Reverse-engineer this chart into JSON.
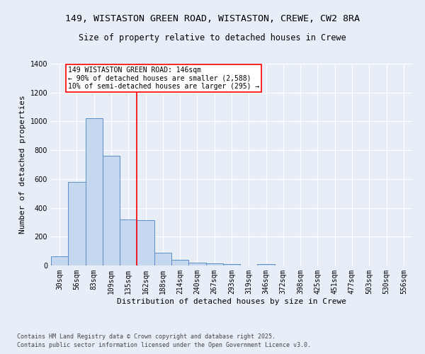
{
  "title_line1": "149, WISTASTON GREEN ROAD, WISTASTON, CREWE, CW2 8RA",
  "title_line2": "Size of property relative to detached houses in Crewe",
  "xlabel": "Distribution of detached houses by size in Crewe",
  "ylabel": "Number of detached properties",
  "categories": [
    "30sqm",
    "56sqm",
    "83sqm",
    "109sqm",
    "135sqm",
    "162sqm",
    "188sqm",
    "214sqm",
    "240sqm",
    "267sqm",
    "293sqm",
    "319sqm",
    "346sqm",
    "372sqm",
    "398sqm",
    "425sqm",
    "451sqm",
    "477sqm",
    "503sqm",
    "530sqm",
    "556sqm"
  ],
  "values": [
    65,
    580,
    1020,
    760,
    320,
    315,
    90,
    40,
    22,
    13,
    10,
    0,
    12,
    0,
    0,
    0,
    0,
    0,
    0,
    0,
    0
  ],
  "bar_color": "#c5d8f0",
  "bar_edge_color": "#5b8fc9",
  "red_line_x": 4.5,
  "annotation_text": "149 WISTASTON GREEN ROAD: 146sqm\n← 90% of detached houses are smaller (2,588)\n10% of semi-detached houses are larger (295) →",
  "annotation_box_color": "white",
  "annotation_box_edge_color": "red",
  "ylim": [
    0,
    1400
  ],
  "yticks": [
    0,
    200,
    400,
    600,
    800,
    1000,
    1200,
    1400
  ],
  "footer_line1": "Contains HM Land Registry data © Crown copyright and database right 2025.",
  "footer_line2": "Contains public sector information licensed under the Open Government Licence v3.0.",
  "bg_color": "#e8eef8",
  "plot_bg_color": "#e8eef8",
  "title1_fontsize": 9.5,
  "title2_fontsize": 8.5,
  "xlabel_fontsize": 8,
  "ylabel_fontsize": 8,
  "tick_fontsize": 7,
  "footer_fontsize": 6,
  "annot_fontsize": 7
}
